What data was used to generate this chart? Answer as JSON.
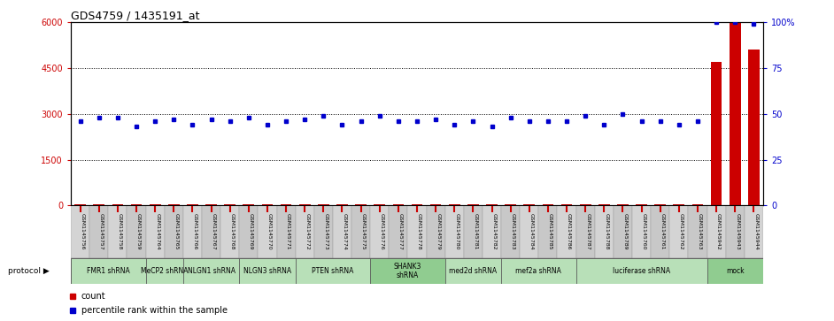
{
  "title": "GDS4759 / 1435191_at",
  "samples": [
    "GSM1145756",
    "GSM1145757",
    "GSM1145758",
    "GSM1145759",
    "GSM1145764",
    "GSM1145765",
    "GSM1145766",
    "GSM1145767",
    "GSM1145768",
    "GSM1145769",
    "GSM1145770",
    "GSM1145771",
    "GSM1145772",
    "GSM1145773",
    "GSM1145774",
    "GSM1145775",
    "GSM1145776",
    "GSM1145777",
    "GSM1145778",
    "GSM1145779",
    "GSM1145780",
    "GSM1145781",
    "GSM1145782",
    "GSM1145783",
    "GSM1145784",
    "GSM1145785",
    "GSM1145786",
    "GSM1145787",
    "GSM1145788",
    "GSM1145789",
    "GSM1145760",
    "GSM1145761",
    "GSM1145762",
    "GSM1145763",
    "GSM1145942",
    "GSM1145943",
    "GSM1145944"
  ],
  "counts": [
    30,
    30,
    30,
    30,
    30,
    30,
    30,
    30,
    30,
    30,
    30,
    30,
    30,
    30,
    30,
    30,
    30,
    30,
    30,
    30,
    30,
    30,
    30,
    30,
    30,
    30,
    30,
    30,
    30,
    30,
    30,
    30,
    30,
    30,
    4700,
    6000,
    5100
  ],
  "percentile": [
    46,
    48,
    48,
    43,
    46,
    47,
    44,
    47,
    46,
    48,
    44,
    46,
    47,
    49,
    44,
    46,
    49,
    46,
    46,
    47,
    44,
    46,
    43,
    48,
    46,
    46,
    46,
    49,
    44,
    50,
    46,
    46,
    44,
    46,
    100,
    100,
    99
  ],
  "protocols": [
    {
      "label": "FMR1 shRNA",
      "start": 0,
      "end": 4,
      "color": "#b8e0b8"
    },
    {
      "label": "MeCP2 shRNA",
      "start": 4,
      "end": 6,
      "color": "#b8e0b8"
    },
    {
      "label": "NLGN1 shRNA",
      "start": 6,
      "end": 9,
      "color": "#b8e0b8"
    },
    {
      "label": "NLGN3 shRNA",
      "start": 9,
      "end": 12,
      "color": "#b8e0b8"
    },
    {
      "label": "PTEN shRNA",
      "start": 12,
      "end": 16,
      "color": "#b8e0b8"
    },
    {
      "label": "SHANK3\nshRNA",
      "start": 16,
      "end": 20,
      "color": "#90cc90"
    },
    {
      "label": "med2d shRNA",
      "start": 20,
      "end": 23,
      "color": "#b8e0b8"
    },
    {
      "label": "mef2a shRNA",
      "start": 23,
      "end": 27,
      "color": "#b8e0b8"
    },
    {
      "label": "luciferase shRNA",
      "start": 27,
      "end": 34,
      "color": "#b8e0b8"
    },
    {
      "label": "mock",
      "start": 34,
      "end": 37,
      "color": "#90cc90"
    }
  ],
  "ylim_left": [
    0,
    6000
  ],
  "yticks_left": [
    0,
    1500,
    3000,
    4500,
    6000
  ],
  "yticks_right": [
    0,
    25,
    50,
    75,
    100
  ],
  "bar_color": "#cc0000",
  "dot_color": "#0000cc",
  "plot_bg": "#ffffff",
  "left_tick_color": "#cc0000",
  "right_tick_color": "#0000cc",
  "sample_colors": [
    "#d4d4d4",
    "#c8c8c8"
  ]
}
